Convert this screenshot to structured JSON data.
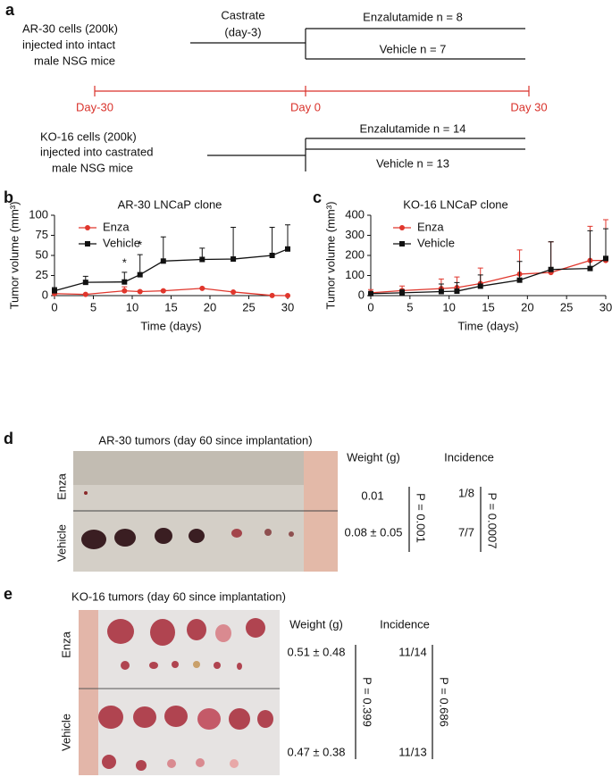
{
  "panel_labels": [
    "a",
    "b",
    "c",
    "d",
    "e"
  ],
  "schematic": {
    "ar30_text": [
      "AR-30 cells (200k)",
      "injected into intact",
      "male NSG mice"
    ],
    "castrate": [
      "Castrate",
      "(day-3)"
    ],
    "ar30_arms": [
      "Enzalutamide n = 8",
      "Vehicle n = 7"
    ],
    "timeline": [
      "Day-30",
      "Day 0",
      "Day 30"
    ],
    "ko16_text": [
      "KO-16 cells (200k)",
      "injected into castrated",
      "male NSG mice"
    ],
    "ko16_arms": [
      "Enzalutamide n = 14",
      "Vehicle n = 13"
    ]
  },
  "chart_data": [
    {
      "type": "line",
      "title": "AR-30 LNCaP clone",
      "xlabel": "Time (days)",
      "ylabel": "Tumor volume (mm³)",
      "x": [
        0,
        4,
        9,
        11,
        14,
        19,
        23,
        28,
        30
      ],
      "xlim": [
        0,
        30
      ],
      "xticks": [
        0,
        5,
        10,
        15,
        20,
        25,
        30
      ],
      "ylim": [
        0,
        100
      ],
      "yticks": [
        0,
        25,
        50,
        75,
        100
      ],
      "grid": false,
      "legend": "upper left",
      "series": [
        {
          "name": "Enza",
          "color": "#e0362c",
          "marker": "circle",
          "values": [
            2.5,
            1.5,
            6,
            5,
            6,
            9,
            4.5,
            0.2,
            0
          ],
          "errors": [
            2,
            0.5,
            5,
            1,
            1,
            0.5,
            0.5,
            0,
            0
          ]
        },
        {
          "name": "Vehicle",
          "color": "#111111",
          "marker": "square",
          "values": [
            6,
            16.5,
            17,
            26,
            43,
            45,
            45.5,
            50,
            58
          ],
          "errors": [
            4,
            7.5,
            12,
            25,
            30,
            14,
            39.5,
            35,
            30
          ]
        }
      ],
      "annotations": [
        {
          "text": "*",
          "x": 9
        },
        {
          "text": "*",
          "x": 11
        }
      ]
    },
    {
      "type": "line",
      "title": "KO-16 LNCaP clone",
      "xlabel": "Time (days)",
      "ylabel": "Tumor volume (mm³)",
      "x": [
        0,
        4,
        9,
        11,
        14,
        19,
        23,
        28,
        30
      ],
      "xlim": [
        0,
        30
      ],
      "xticks": [
        0,
        5,
        10,
        15,
        20,
        25,
        30
      ],
      "ylim": [
        0,
        400
      ],
      "yticks": [
        0,
        100,
        200,
        300,
        400
      ],
      "grid": false,
      "legend": "upper left",
      "series": [
        {
          "name": "Enza",
          "color": "#e0362c",
          "marker": "circle",
          "values": [
            14,
            25,
            35,
            40,
            60,
            107,
            115,
            175,
            175
          ],
          "errors": [
            16,
            23,
            48,
            53,
            77,
            120,
            153,
            170,
            203
          ]
        },
        {
          "name": "Vehicle",
          "color": "#111111",
          "marker": "square",
          "values": [
            10,
            14,
            20,
            22,
            47,
            77,
            130,
            135,
            185
          ],
          "errors": [
            10,
            16,
            38,
            43,
            56,
            93,
            138,
            188,
            148
          ]
        }
      ]
    }
  ],
  "tumor_panels": [
    {
      "title": "AR-30 tumors (day 60 since implantation)",
      "rows": [
        "Enza",
        "Vehicle"
      ],
      "weight_header": "Weight (g)",
      "incidence_header": "Incidence",
      "weights": [
        "0.01",
        "0.08 ± 0.05"
      ],
      "weight_p": "P = 0.001",
      "incidences": [
        "1/8",
        "7/7"
      ],
      "incidence_p": "P = 0.0007"
    },
    {
      "title": "KO-16 tumors (day 60 since implantation)",
      "rows": [
        "Enza",
        "Vehicle"
      ],
      "weight_header": "Weight (g)",
      "incidence_header": "Incidence",
      "weights": [
        "0.51 ± 0.48",
        "0.47 ± 0.38"
      ],
      "weight_p": "P = 0.399",
      "incidences": [
        "11/14",
        "11/13"
      ],
      "incidence_p": "P = 0.686"
    }
  ]
}
